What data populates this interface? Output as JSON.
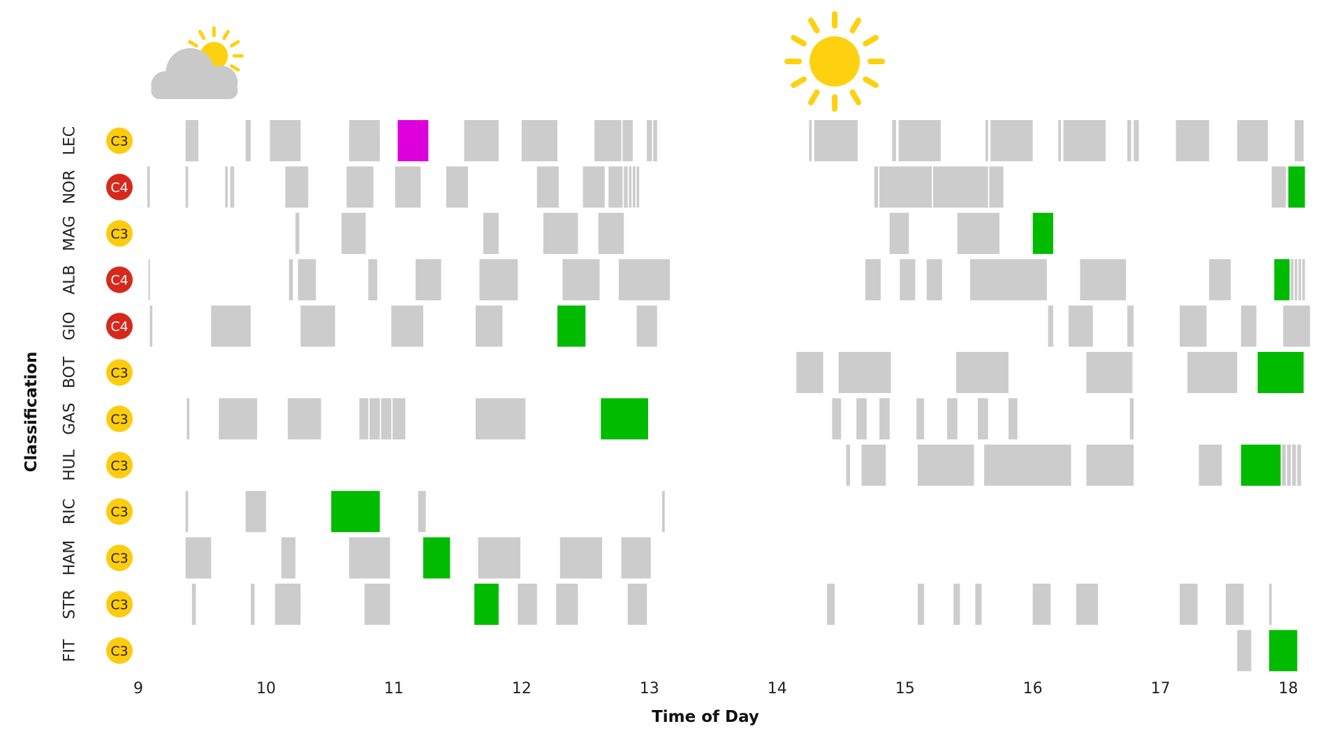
{
  "chart_data": {
    "type": "timeline",
    "xlabel": "Time of Day",
    "ylabel": "Classification",
    "xlim": [
      9,
      18.15
    ],
    "xticks": [
      9,
      10,
      11,
      12,
      13,
      14,
      15,
      16,
      17,
      18
    ],
    "colors": {
      "default": "#cccccc",
      "green": "#00bb00",
      "magenta": "#dd00dd",
      "badge_yellow": "#fecc0f",
      "badge_red": "#d6291b",
      "sun": "#fdd10f",
      "cloud": "#c9c9c9"
    },
    "weather": [
      {
        "icon": "partly-cloudy-icon",
        "x": 9.45
      },
      {
        "icon": "sun-icon",
        "x": 14.45
      }
    ],
    "rows": [
      {
        "driver": "LEC",
        "class": "C3",
        "badge": "yellow",
        "segments": [
          [
            9.37,
            9.47
          ],
          [
            9.84,
            9.88
          ],
          [
            10.03,
            10.27
          ],
          [
            10.65,
            10.89
          ],
          [
            11.03,
            11.27,
            "magenta"
          ],
          [
            11.55,
            11.82
          ],
          [
            12.0,
            12.28
          ],
          [
            12.57,
            12.78
          ],
          [
            12.79,
            12.87
          ],
          [
            12.98,
            13.02
          ],
          [
            13.03,
            13.06
          ],
          [
            14.25,
            14.27
          ],
          [
            14.29,
            14.63
          ],
          [
            14.9,
            14.93
          ],
          [
            14.95,
            15.28
          ],
          [
            15.63,
            15.65
          ],
          [
            15.67,
            16.0
          ],
          [
            16.2,
            16.22
          ],
          [
            16.24,
            16.57
          ],
          [
            16.74,
            16.77
          ],
          [
            16.79,
            16.83
          ],
          [
            17.12,
            17.38
          ],
          [
            17.6,
            17.84
          ],
          [
            18.05,
            18.12
          ]
        ]
      },
      {
        "driver": "NOR",
        "class": "C4",
        "badge": "red",
        "segments": [
          [
            9.07,
            9.09
          ],
          [
            9.37,
            9.39
          ],
          [
            9.68,
            9.7
          ],
          [
            9.72,
            9.75
          ],
          [
            10.15,
            10.33
          ],
          [
            10.63,
            10.84
          ],
          [
            11.01,
            11.21
          ],
          [
            11.41,
            11.58
          ],
          [
            12.12,
            12.29
          ],
          [
            12.48,
            12.65
          ],
          [
            12.68,
            12.79
          ],
          [
            12.8,
            12.83
          ],
          [
            12.84,
            12.86
          ],
          [
            12.87,
            12.89
          ],
          [
            12.9,
            12.92
          ],
          [
            14.76,
            14.79
          ],
          [
            14.8,
            15.21
          ],
          [
            15.22,
            15.65
          ],
          [
            15.66,
            15.77
          ],
          [
            17.87,
            17.98
          ],
          [
            18.0,
            18.13,
            "green"
          ]
        ]
      },
      {
        "driver": "MAG",
        "class": "C3",
        "badge": "yellow",
        "segments": [
          [
            10.23,
            10.26
          ],
          [
            10.59,
            10.78
          ],
          [
            11.7,
            11.82
          ],
          [
            12.17,
            12.44
          ],
          [
            12.6,
            12.8
          ],
          [
            14.88,
            15.03
          ],
          [
            15.41,
            15.74
          ],
          [
            16.0,
            16.16,
            "green"
          ]
        ]
      },
      {
        "driver": "ALB",
        "class": "C4",
        "badge": "red",
        "segments": [
          [
            9.08,
            9.09
          ],
          [
            10.18,
            10.21
          ],
          [
            10.25,
            10.39
          ],
          [
            10.8,
            10.87
          ],
          [
            11.17,
            11.37
          ],
          [
            11.67,
            11.97
          ],
          [
            12.32,
            12.61
          ],
          [
            12.76,
            13.16
          ],
          [
            14.69,
            14.81
          ],
          [
            14.96,
            15.08
          ],
          [
            15.17,
            15.29
          ],
          [
            15.51,
            16.11
          ],
          [
            16.37,
            16.73
          ],
          [
            17.38,
            17.55
          ],
          [
            17.89,
            18.01,
            "green"
          ],
          [
            18.02,
            18.04
          ],
          [
            18.05,
            18.07
          ],
          [
            18.08,
            18.1
          ],
          [
            18.11,
            18.13
          ]
        ]
      },
      {
        "driver": "GIO",
        "class": "C4",
        "badge": "red",
        "segments": [
          [
            9.09,
            9.11
          ],
          [
            9.57,
            9.88
          ],
          [
            10.27,
            10.54
          ],
          [
            10.98,
            11.23
          ],
          [
            11.64,
            11.85
          ],
          [
            12.28,
            12.5,
            "green"
          ],
          [
            12.9,
            13.06
          ],
          [
            16.12,
            16.16
          ],
          [
            16.28,
            16.47
          ],
          [
            16.74,
            16.79
          ],
          [
            17.15,
            17.36
          ],
          [
            17.63,
            17.75
          ],
          [
            17.96,
            18.17
          ]
        ]
      },
      {
        "driver": "BOT",
        "class": "C3",
        "badge": "yellow",
        "segments": [
          [
            14.15,
            14.36
          ],
          [
            14.48,
            14.89
          ],
          [
            15.4,
            15.81
          ],
          [
            16.42,
            16.78
          ],
          [
            17.21,
            17.6
          ],
          [
            17.76,
            18.12,
            "green"
          ]
        ]
      },
      {
        "driver": "GAS",
        "class": "C3",
        "badge": "yellow",
        "segments": [
          [
            9.38,
            9.4
          ],
          [
            9.63,
            9.93
          ],
          [
            10.17,
            10.43
          ],
          [
            10.73,
            10.8
          ],
          [
            10.81,
            10.89
          ],
          [
            10.9,
            10.98
          ],
          [
            10.99,
            11.09
          ],
          [
            11.64,
            12.03
          ],
          [
            12.62,
            12.99,
            "green"
          ],
          [
            14.43,
            14.5
          ],
          [
            14.62,
            14.7
          ],
          [
            14.8,
            14.88
          ],
          [
            15.09,
            15.15
          ],
          [
            15.33,
            15.41
          ],
          [
            15.57,
            15.65
          ],
          [
            15.81,
            15.88
          ],
          [
            16.76,
            16.79
          ]
        ]
      },
      {
        "driver": "HUL",
        "class": "C3",
        "badge": "yellow",
        "segments": [
          [
            14.54,
            14.57
          ],
          [
            14.66,
            14.85
          ],
          [
            15.1,
            15.54
          ],
          [
            15.62,
            16.3
          ],
          [
            16.42,
            16.79
          ],
          [
            17.3,
            17.48
          ],
          [
            17.63,
            17.94,
            "green"
          ],
          [
            17.95,
            17.98
          ],
          [
            17.99,
            18.02
          ],
          [
            18.03,
            18.06
          ],
          [
            18.07,
            18.1
          ]
        ]
      },
      {
        "driver": "RIC",
        "class": "C3",
        "badge": "yellow",
        "segments": [
          [
            9.37,
            9.39
          ],
          [
            9.84,
            10.0
          ],
          [
            10.51,
            10.89,
            "green"
          ],
          [
            11.19,
            11.25
          ],
          [
            13.1,
            13.12
          ]
        ]
      },
      {
        "driver": "HAM",
        "class": "C3",
        "badge": "yellow",
        "segments": [
          [
            9.37,
            9.57
          ],
          [
            10.12,
            10.23
          ],
          [
            10.65,
            10.97
          ],
          [
            11.23,
            11.44,
            "green"
          ],
          [
            11.66,
            11.99
          ],
          [
            12.3,
            12.63
          ],
          [
            12.78,
            13.01
          ]
        ]
      },
      {
        "driver": "STR",
        "class": "C3",
        "badge": "yellow",
        "segments": [
          [
            9.42,
            9.45
          ],
          [
            9.88,
            9.91
          ],
          [
            10.07,
            10.27
          ],
          [
            10.77,
            10.97
          ],
          [
            11.63,
            11.82,
            "green"
          ],
          [
            11.97,
            12.12
          ],
          [
            12.27,
            12.44
          ],
          [
            12.83,
            12.98
          ],
          [
            14.39,
            14.45
          ],
          [
            15.1,
            15.15
          ],
          [
            15.38,
            15.43
          ],
          [
            15.55,
            15.6
          ],
          [
            16.0,
            16.14
          ],
          [
            16.34,
            16.51
          ],
          [
            17.15,
            17.29
          ],
          [
            17.51,
            17.65
          ],
          [
            17.85,
            17.87
          ]
        ]
      },
      {
        "driver": "FIT",
        "class": "C3",
        "badge": "yellow",
        "segments": [
          [
            17.6,
            17.71
          ],
          [
            17.85,
            18.07,
            "green"
          ]
        ]
      }
    ]
  }
}
